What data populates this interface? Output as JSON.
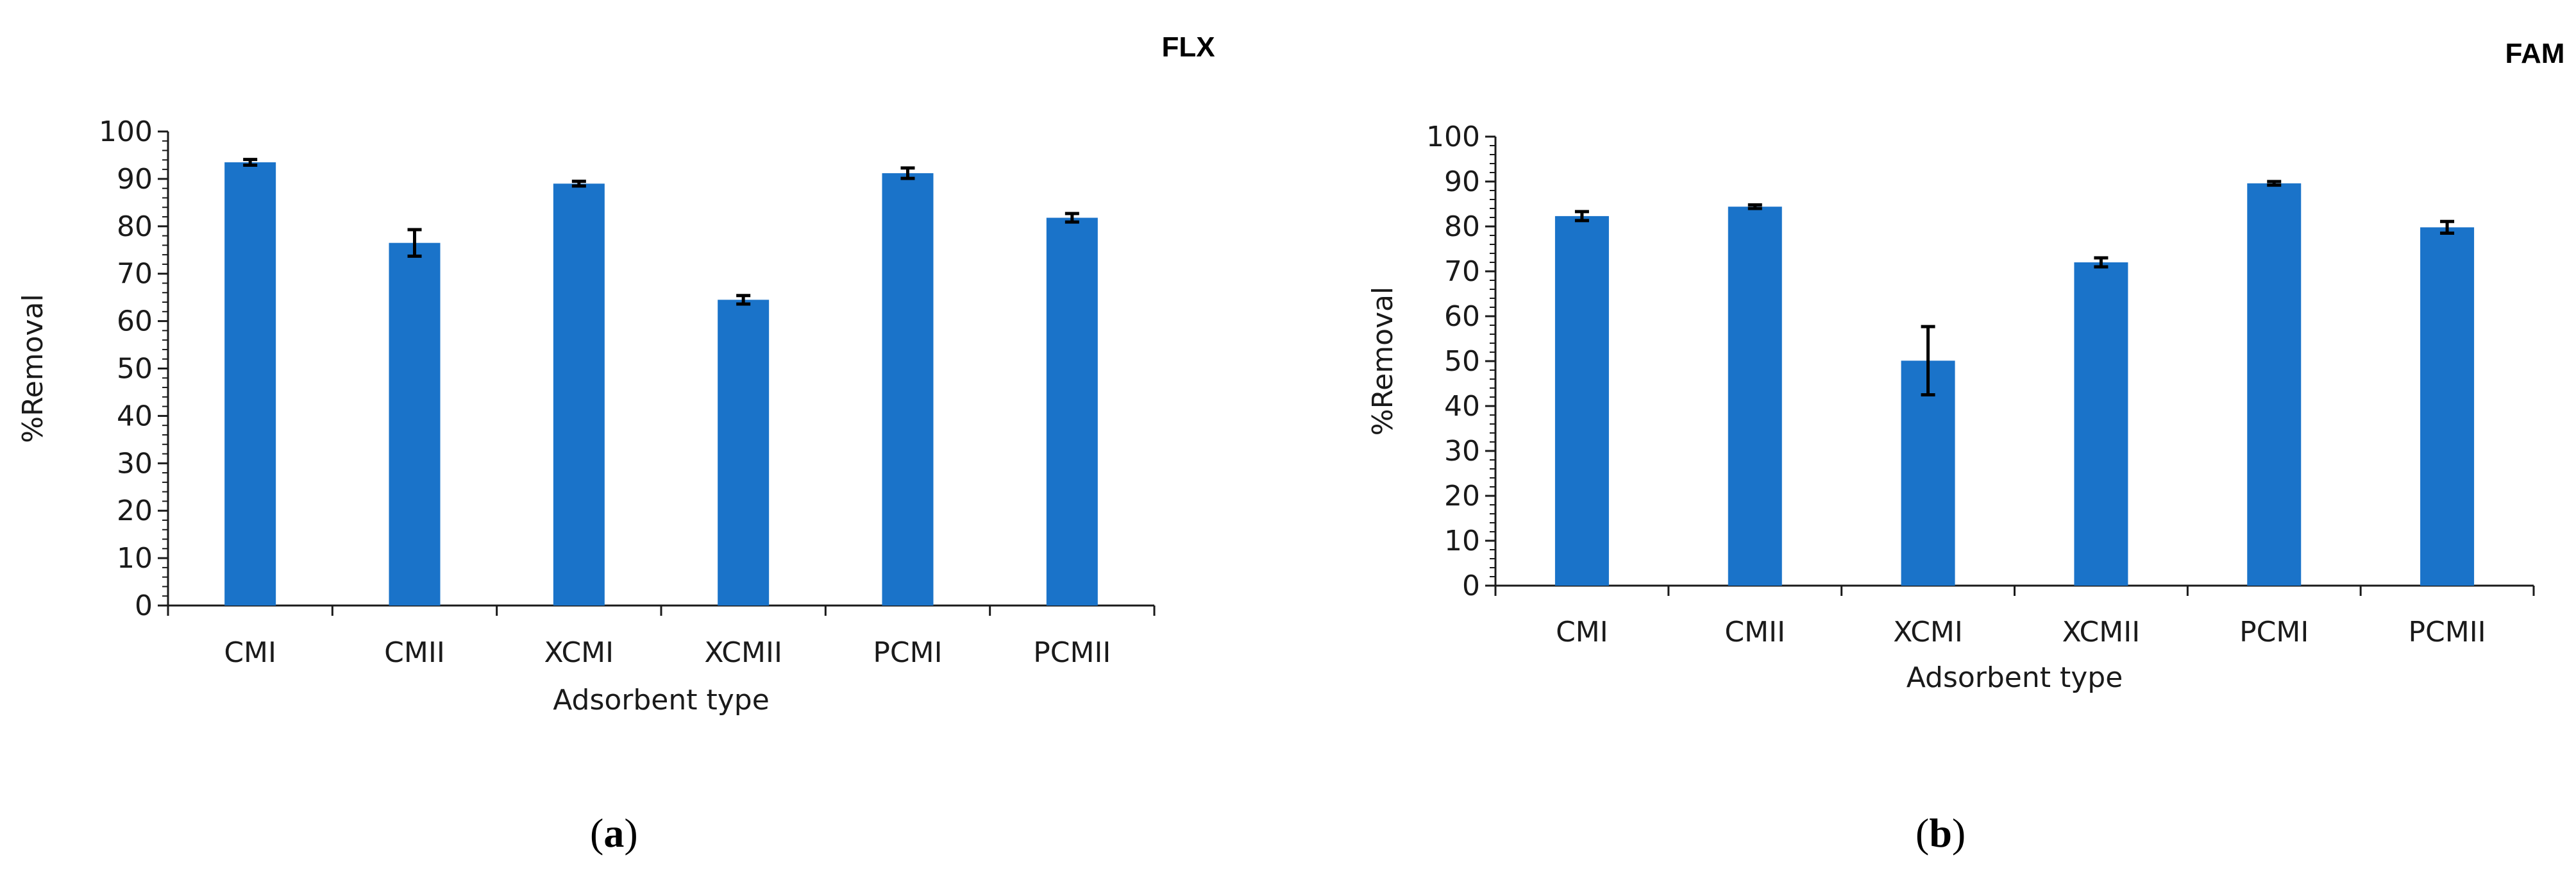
{
  "chart_data": [
    {
      "type": "bar",
      "title": "FLX",
      "xlabel": "Adsorbent type",
      "ylabel": "%Removal",
      "ylim": [
        0,
        100
      ],
      "yticks": [
        0,
        10,
        20,
        30,
        40,
        50,
        60,
        70,
        80,
        90,
        100
      ],
      "categories": [
        "CMI",
        "CMII",
        "XCMI",
        "XCMII",
        "PCMI",
        "PCMII"
      ],
      "values": [
        93.5,
        76.5,
        89,
        64.5,
        91.2,
        81.8
      ],
      "errors": [
        0.6,
        2.8,
        0.5,
        0.9,
        1.1,
        0.9
      ],
      "bar_color": "#1a73c9",
      "grid": false,
      "panel_label": "a"
    },
    {
      "type": "bar",
      "title": "FAM",
      "xlabel": "Adsorbent type",
      "ylabel": "%Removal",
      "ylim": [
        0,
        100
      ],
      "yticks": [
        0,
        10,
        20,
        30,
        40,
        50,
        60,
        70,
        80,
        90,
        100
      ],
      "categories": [
        "CMI",
        "CMII",
        "XCMI",
        "XCMII",
        "PCMI",
        "PCMII"
      ],
      "values": [
        82.3,
        84.4,
        50.1,
        72.0,
        89.6,
        79.8
      ],
      "errors": [
        1.0,
        0.4,
        7.6,
        1.0,
        0.4,
        1.3
      ],
      "bar_color": "#1a73c9",
      "grid": false,
      "panel_label": "b"
    }
  ]
}
